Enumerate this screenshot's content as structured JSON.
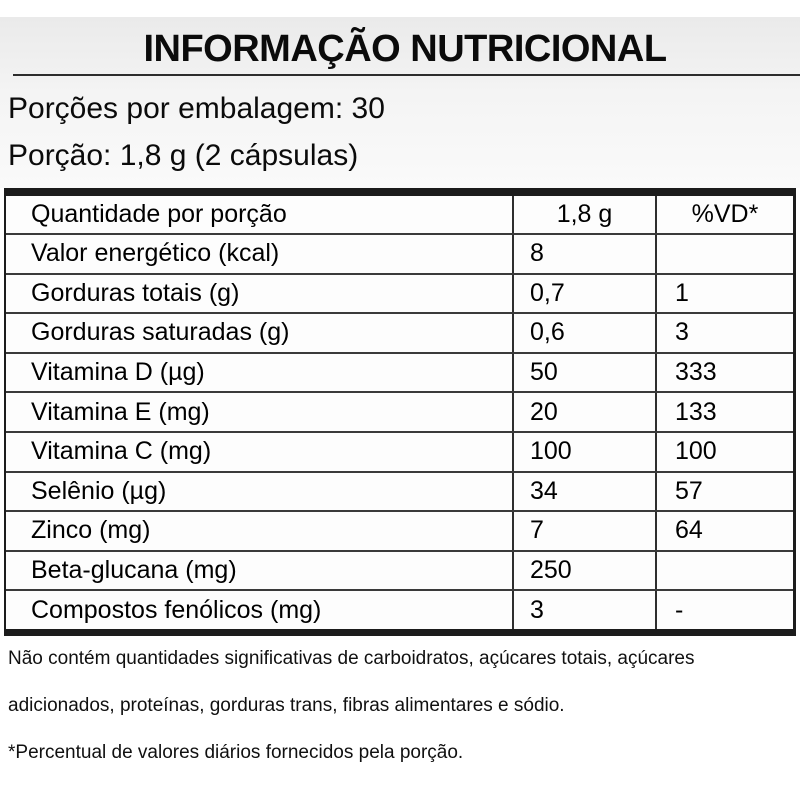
{
  "label": {
    "title": "INFORMAÇÃO NUTRICIONAL",
    "servings_per_package": "Porções por embalagem: 30",
    "serving_size": "Porção: 1,8 g (2 cápsulas)"
  },
  "table": {
    "columns": {
      "quantity": "Quantidade por porção",
      "amount": "1,8 g",
      "daily_value": "%VD*"
    },
    "rows": [
      {
        "name": "Valor energético (kcal)",
        "amount": "8",
        "dv": ""
      },
      {
        "name": "Gorduras totais (g)",
        "amount": "0,7",
        "dv": "1"
      },
      {
        "name": "Gorduras saturadas (g)",
        "amount": "0,6",
        "dv": "3"
      },
      {
        "name": "Vitamina D (µg)",
        "amount": "50",
        "dv": "333"
      },
      {
        "name": "Vitamina E (mg)",
        "amount": "20",
        "dv": "133"
      },
      {
        "name": "Vitamina C (mg)",
        "amount": "100",
        "dv": "100"
      },
      {
        "name": "Selênio (µg)",
        "amount": "34",
        "dv": "57"
      },
      {
        "name": "Zinco (mg)",
        "amount": "7",
        "dv": "64"
      },
      {
        "name": "Beta-glucana (mg)",
        "amount": "250",
        "dv": ""
      },
      {
        "name": "Compostos fenólicos (mg)",
        "amount": "3",
        "dv": "-"
      }
    ]
  },
  "footnotes": [
    "Não contém quantidades significativas de carboidratos, açúcares totais, açúcares",
    "adicionados, proteínas, gorduras trans, fibras alimentares e sódio.",
    "*Percentual de valores diários fornecidos pela porção."
  ],
  "colors": {
    "text": "#000000",
    "thin_rule": "#3a3a3a",
    "thick_rule": "#1c1c1c",
    "header_band": "#eaeaea",
    "background": "#ffffff"
  }
}
